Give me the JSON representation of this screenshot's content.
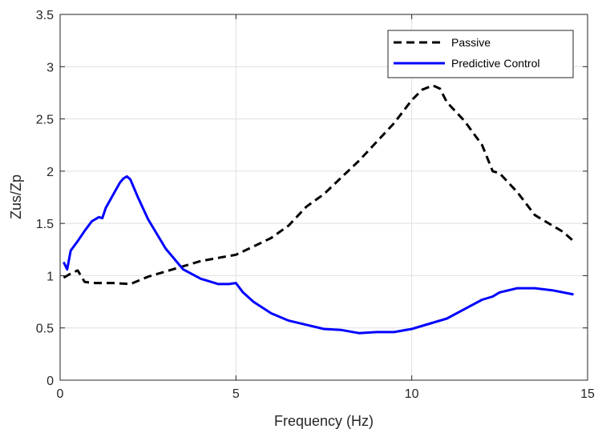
{
  "chart_data": {
    "type": "line",
    "xlabel": "Frequency (Hz)",
    "ylabel": "Zus/Zp",
    "xlim": [
      0,
      15
    ],
    "ylim": [
      0,
      3.5
    ],
    "xticks": [
      0,
      5,
      10,
      15
    ],
    "yticks": [
      0,
      0.5,
      1,
      1.5,
      2,
      2.5,
      3,
      3.5
    ],
    "xtick_labels": [
      "0",
      "5",
      "10",
      "15"
    ],
    "ytick_labels": [
      "0",
      "0.5",
      "1",
      "1.5",
      "2",
      "2.5",
      "3",
      "3.5"
    ],
    "grid": true,
    "legend_position": "top-right",
    "series": [
      {
        "name": "Passive",
        "color": "#000000",
        "style": "dashed",
        "x": [
          0.1,
          0.3,
          0.5,
          0.7,
          1.0,
          1.5,
          2.0,
          2.5,
          3.0,
          3.5,
          4.0,
          4.5,
          5.0,
          5.5,
          6.0,
          6.5,
          7.0,
          7.5,
          8.0,
          8.5,
          9.0,
          9.5,
          10.0,
          10.3,
          10.6,
          10.8,
          11.0,
          11.5,
          12.0,
          12.3,
          12.5,
          13.0,
          13.5,
          14.0,
          14.3,
          14.6
        ],
        "values": [
          0.98,
          1.02,
          1.05,
          0.94,
          0.93,
          0.93,
          0.92,
          0.99,
          1.04,
          1.09,
          1.14,
          1.17,
          1.2,
          1.28,
          1.36,
          1.48,
          1.66,
          1.78,
          1.94,
          2.1,
          2.28,
          2.46,
          2.68,
          2.78,
          2.82,
          2.79,
          2.66,
          2.48,
          2.25,
          2.0,
          1.98,
          1.8,
          1.58,
          1.48,
          1.42,
          1.33
        ]
      },
      {
        "name": "Predictive Control",
        "color": "#0000ff",
        "style": "solid",
        "x": [
          0.1,
          0.2,
          0.3,
          0.5,
          0.7,
          0.9,
          1.1,
          1.2,
          1.3,
          1.5,
          1.7,
          1.8,
          1.9,
          2.0,
          2.2,
          2.5,
          3.0,
          3.5,
          4.0,
          4.5,
          4.8,
          5.0,
          5.2,
          5.5,
          6.0,
          6.5,
          7.0,
          7.5,
          8.0,
          8.5,
          9.0,
          9.5,
          10.0,
          10.5,
          11.0,
          11.5,
          12.0,
          12.3,
          12.5,
          13.0,
          13.5,
          14.0,
          14.6
        ],
        "values": [
          1.13,
          1.06,
          1.24,
          1.33,
          1.43,
          1.52,
          1.56,
          1.55,
          1.65,
          1.77,
          1.89,
          1.93,
          1.95,
          1.92,
          1.76,
          1.54,
          1.26,
          1.06,
          0.97,
          0.92,
          0.92,
          0.93,
          0.84,
          0.75,
          0.64,
          0.57,
          0.53,
          0.49,
          0.48,
          0.45,
          0.46,
          0.46,
          0.49,
          0.54,
          0.59,
          0.68,
          0.77,
          0.8,
          0.84,
          0.88,
          0.88,
          0.86,
          0.82
        ]
      }
    ]
  }
}
